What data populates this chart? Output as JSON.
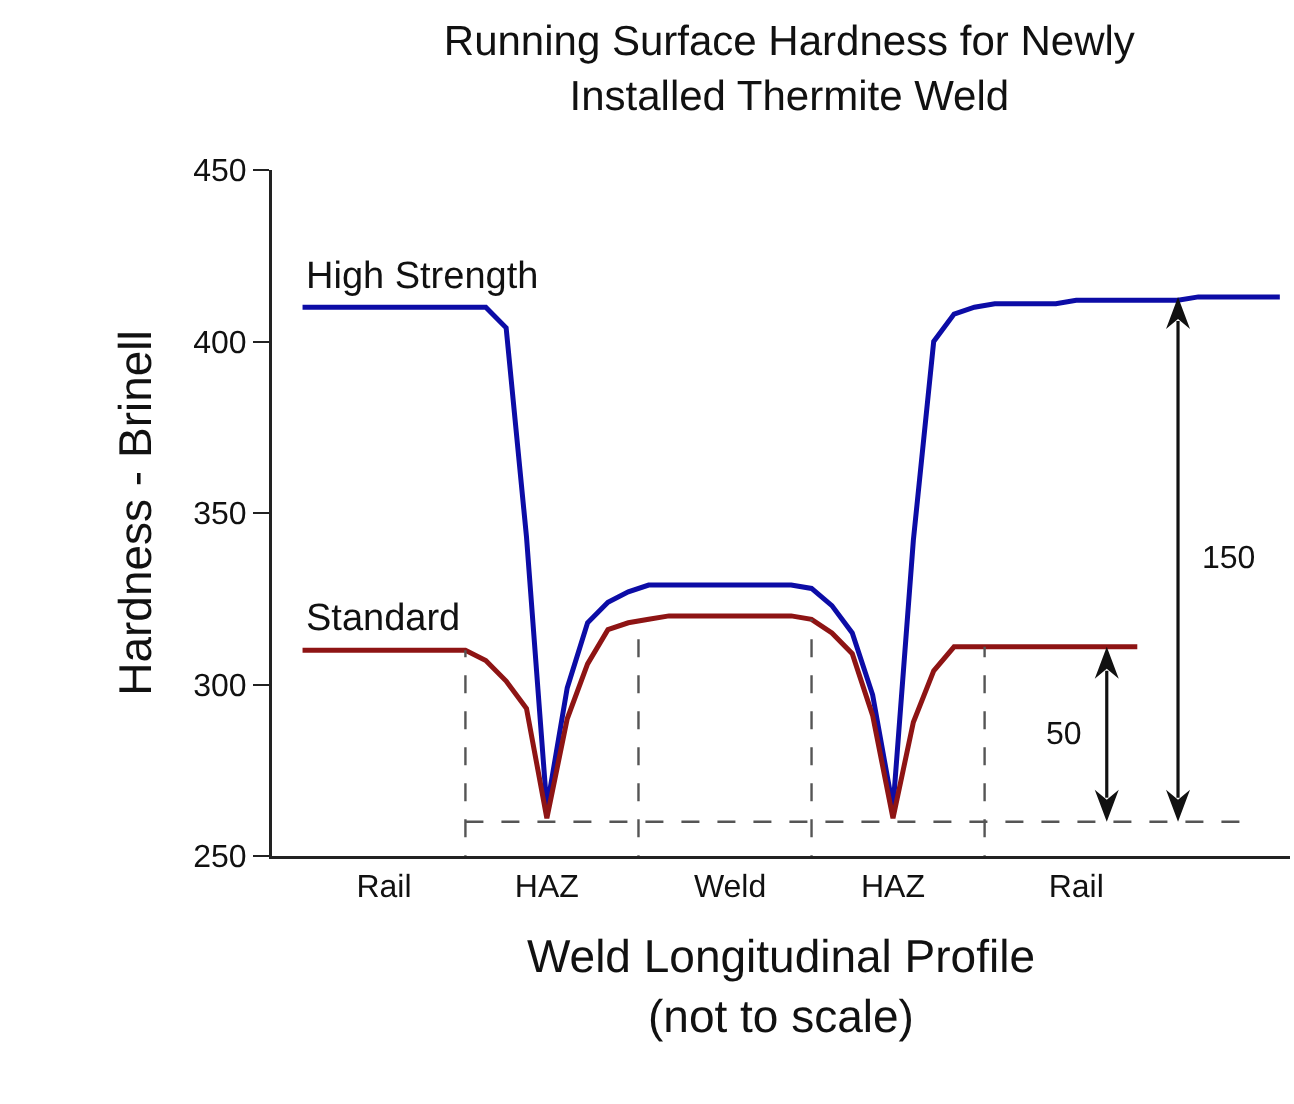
{
  "chart_data": {
    "type": "line",
    "title": "Running Surface Hardness for Newly\nInstalled Thermite Weld",
    "xlabel": "Weld Longitudinal Profile\n(not to scale)",
    "ylabel": "Hardness - Brinell",
    "categories": [
      null,
      null,
      null,
      null,
      null,
      "Rail",
      null,
      null,
      null,
      null,
      null,
      null,
      null,
      "HAZ",
      null,
      null,
      null,
      null,
      null,
      null,
      null,
      null,
      "Weld",
      null,
      null,
      null,
      null,
      null,
      null,
      null,
      "HAZ",
      null,
      null,
      null,
      null,
      null,
      null,
      null,
      null,
      "Rail",
      null,
      null,
      null,
      null,
      null,
      null,
      null,
      null,
      null,
      null
    ],
    "series": [
      {
        "name": "High Strength",
        "color": "#0c0ca6",
        "values": [
          null,
          410,
          410,
          410,
          410,
          410,
          410,
          410,
          410,
          410,
          410,
          404,
          343,
          264,
          299,
          318,
          324,
          327,
          329,
          329,
          329,
          329,
          329,
          329,
          329,
          329,
          328,
          323,
          315,
          297,
          264,
          342,
          400,
          408,
          410,
          411,
          411,
          411,
          411,
          412,
          412,
          412,
          412,
          412,
          412,
          413,
          413,
          413,
          413,
          413
        ]
      },
      {
        "name": "Standard",
        "color": "#8e1414",
        "values": [
          null,
          310,
          310,
          310,
          310,
          310,
          310,
          310,
          310,
          310,
          307,
          301,
          293,
          261,
          290,
          306,
          316,
          318,
          319,
          320,
          320,
          320,
          320,
          320,
          320,
          320,
          319,
          315,
          309,
          291,
          261,
          289,
          304,
          311,
          311,
          311,
          311,
          311,
          311,
          311,
          311,
          311,
          311,
          null,
          null,
          null,
          null,
          null,
          null,
          null
        ]
      }
    ],
    "ylim": [
      250,
      450
    ],
    "yticks": [
      250,
      300,
      350,
      400,
      450
    ],
    "grid": false,
    "legend": false,
    "marker": "none",
    "line_style": "solid",
    "ref_lines": [
      {
        "axis": "y",
        "value": 260,
        "line_style": "dashed"
      }
    ],
    "annotations": [
      "150",
      "50"
    ]
  }
}
